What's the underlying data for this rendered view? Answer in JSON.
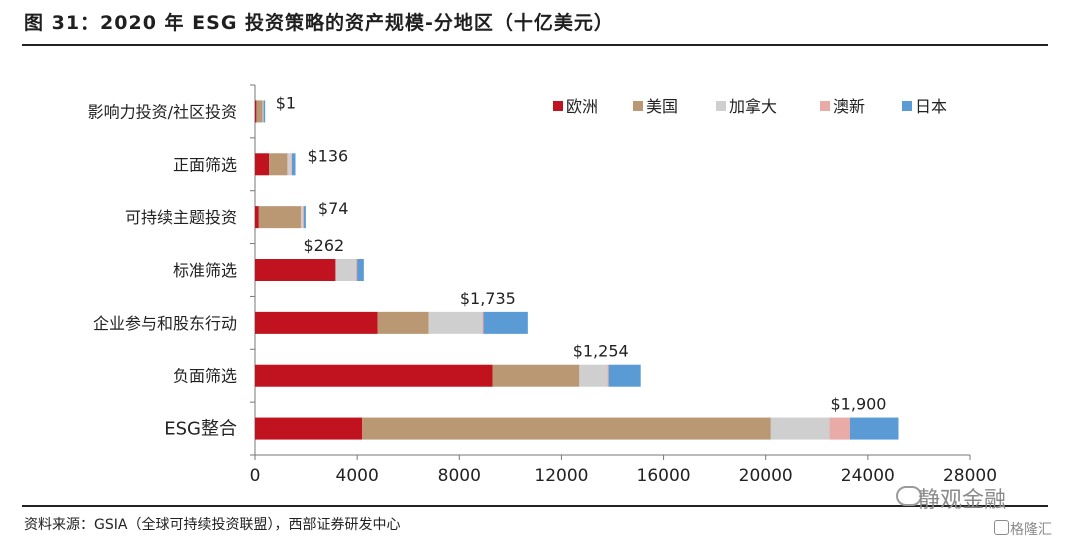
{
  "title": "图 31：2020 年 ESG 投资策略的资产规模-分地区（十亿美元）",
  "source": "资料来源：GSIA（全球可持续投资联盟），西部证券研发中心",
  "watermarks": [
    "静观金融",
    "格隆汇"
  ],
  "chart_data": {
    "type": "bar",
    "orientation": "horizontal",
    "stacked": true,
    "categories": [
      "影响力投资/社区投资",
      "正面筛选",
      "可持续主题投资",
      "标准筛选",
      "企业参与和股东行动",
      "负面筛选",
      "ESG整合"
    ],
    "series": [
      {
        "name": "欧洲",
        "color": "#c0121f",
        "values": [
          50,
          550,
          150,
          3150,
          4800,
          9300,
          4200
        ]
      },
      {
        "name": "美国",
        "color": "#b99873",
        "values": [
          250,
          720,
          1650,
          0,
          2000,
          3400,
          16000
        ]
      },
      {
        "name": "加拿大",
        "color": "#cfcfcf",
        "values": [
          40,
          150,
          80,
          800,
          2100,
          1100,
          2300
        ]
      },
      {
        "name": "澳新",
        "color": "#e9aba7",
        "values": [
          0,
          30,
          40,
          50,
          50,
          50,
          800
        ]
      },
      {
        "name": "日本",
        "color": "#5a9bd5",
        "values": [
          1,
          136,
          74,
          262,
          1735,
          1254,
          1900
        ]
      }
    ],
    "data_labels": [
      "$1",
      "$136",
      "$74",
      "$262",
      "$1,735",
      "$1,254",
      "$1,900"
    ],
    "xlim": [
      0,
      28000
    ],
    "xticks": [
      "0",
      "4000",
      "8000",
      "12000",
      "16000",
      "20000",
      "24000",
      "28000"
    ],
    "grid": false,
    "legend_position": "top-right"
  }
}
